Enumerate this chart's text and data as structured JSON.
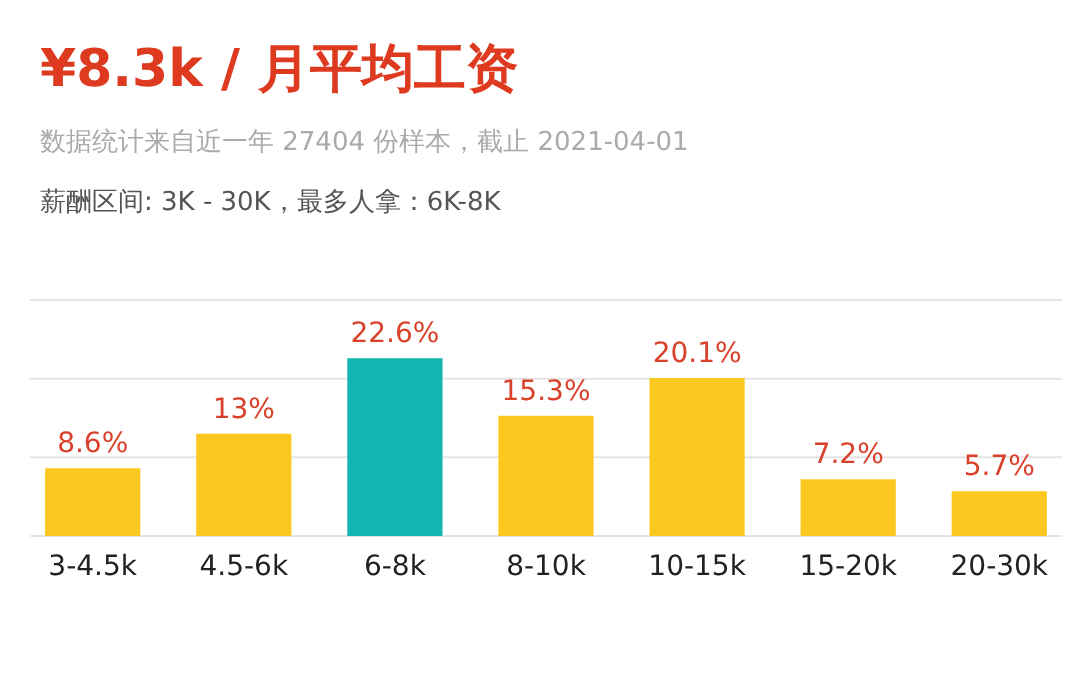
{
  "chart_data": {
    "type": "bar",
    "title": "¥8.3k / 月平均工资",
    "subtitle": "数据统计来自近一年 27404 份样本，截止 2021-04-01",
    "annotations": [
      "薪酬区间: 3K - 30K，最多人拿：6K-8K"
    ],
    "categories": [
      "3-4.5k",
      "4.5-6k",
      "6-8k",
      "8-10k",
      "10-15k",
      "15-20k",
      "20-30k"
    ],
    "values": [
      8.6,
      13,
      22.6,
      15.3,
      20.1,
      7.2,
      5.7
    ],
    "colors": [
      "#fcc820",
      "#fcc820",
      "#13b5b1",
      "#fcc820",
      "#fcc820",
      "#fcc820",
      "#fcc820"
    ],
    "value_labels": [
      "8.6%",
      "13%",
      "22.6%",
      "15.3%",
      "20.1%",
      "7.2%",
      "5.7%"
    ],
    "ylim": [
      0,
      30
    ],
    "yticks": [
      {
        "value": 0,
        "label": null
      },
      {
        "value": 10,
        "label": null
      },
      {
        "value": 20,
        "label": null
      },
      {
        "value": 30,
        "label": null
      }
    ],
    "grid": "y",
    "tick_labels": "x"
  }
}
